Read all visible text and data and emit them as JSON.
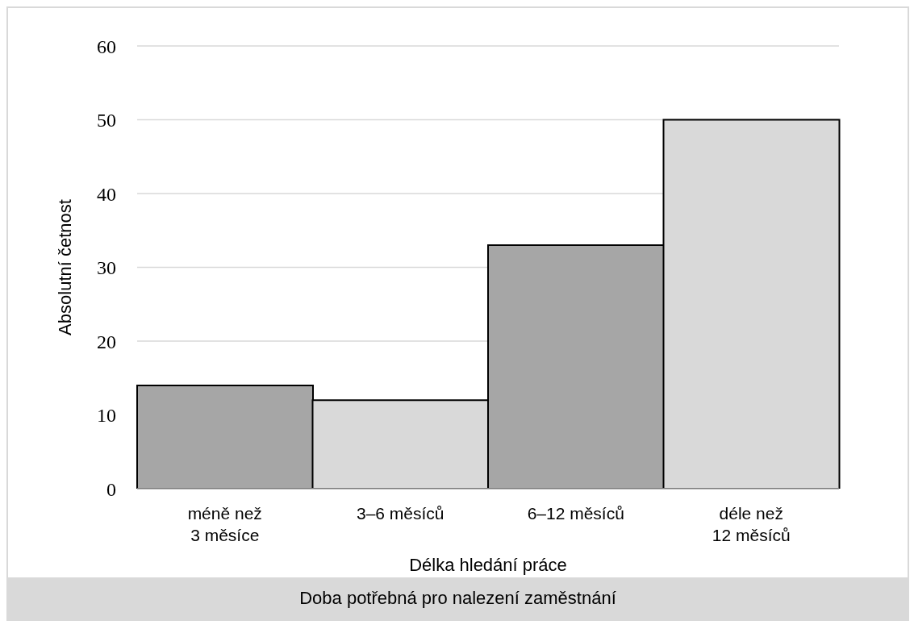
{
  "chart_data": {
    "type": "bar",
    "title": "Doba potřebná pro nalezení zaměstnání",
    "xlabel": "Délka hledání práce",
    "ylabel": "Absolutní četnost",
    "categories": [
      "méně než 3 měsíce",
      "3–6 měsíců",
      "6–12 měsíců",
      "déle než 12 měsíců"
    ],
    "values": [
      14,
      12,
      33,
      50
    ],
    "colors": [
      "#a6a6a6",
      "#d9d9d9",
      "#a6a6a6",
      "#d9d9d9"
    ],
    "ylim": [
      0,
      60
    ],
    "yticks": [
      0,
      10,
      20,
      30,
      40,
      50,
      60
    ],
    "grid": "y",
    "legend": false
  }
}
